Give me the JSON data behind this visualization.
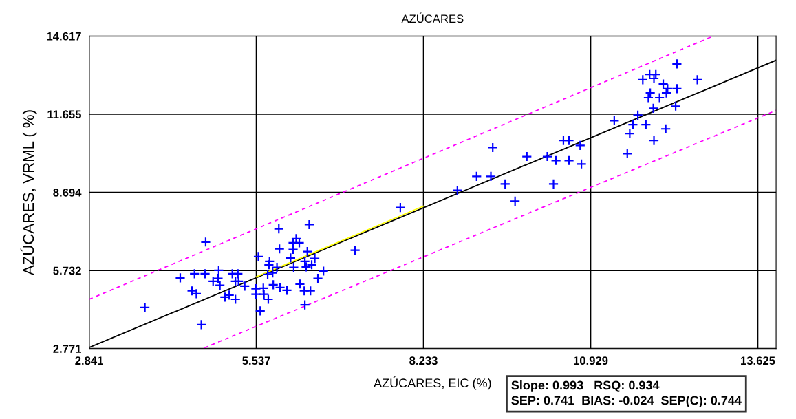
{
  "chart_data": {
    "type": "scatter",
    "title": "AZÚCARES",
    "xlabel": "AZÚCARES, EIC (%)",
    "ylabel": "AZÚCARES, VRML ( %)",
    "xlim": [
      2.841,
      13.92
    ],
    "ylim": [
      2.771,
      14.617
    ],
    "xticks": [
      2.841,
      5.537,
      8.233,
      10.929,
      13.625
    ],
    "yticks": [
      2.771,
      5.732,
      8.694,
      11.655,
      14.617
    ],
    "grid": true,
    "legend": false,
    "annotations": [
      "Slope: 0.993   RSQ: 0.934",
      "SEP: 0.741  BIAS: -0.024  SEP(C): 0.744"
    ],
    "series": [
      {
        "color": "#0000ff",
        "marker": "cross",
        "x": [
          3.74,
          4.65,
          4.72,
          4.31,
          4.54,
          4.71,
          4.93,
          4.92,
          4.84,
          4.95,
          4.5,
          4.57,
          5.03,
          5.1,
          5.2,
          5.15,
          5.24,
          5.2,
          5.25,
          5.35,
          5.53,
          5.53,
          5.65,
          5.66,
          5.73,
          5.6,
          5.57,
          5.75,
          5.74,
          5.72,
          5.8,
          5.87,
          5.9,
          6.39,
          5.91,
          6.18,
          6.13,
          6.23,
          6.13,
          6.09,
          6.36,
          6.32,
          6.34,
          6.43,
          6.48,
          6.14,
          6.62,
          6.53,
          5.81,
          5.92,
          6.03,
          6.24,
          6.31,
          6.41,
          6.32,
          7.13,
          7.86,
          8.78,
          9.09,
          9.32,
          9.35,
          9.55,
          9.71,
          9.9,
          10.23,
          10.37,
          10.33,
          10.58,
          10.78,
          10.76,
          10.49,
          10.58,
          12.32,
          12.65,
          11.77,
          11.88,
          11.98,
          11.95,
          12.1,
          12.17,
          12.32,
          12.15,
          11.89,
          11.86,
          12.04,
          12.3,
          11.94,
          11.69,
          11.31,
          11.61,
          11.82,
          12.14,
          11.56,
          11.95,
          11.52
        ],
        "values": [
          4.33,
          3.68,
          6.81,
          5.45,
          5.61,
          5.61,
          5.74,
          5.43,
          5.32,
          5.17,
          4.96,
          4.85,
          4.72,
          4.8,
          4.64,
          5.61,
          5.61,
          5.32,
          5.32,
          5.14,
          5.04,
          4.83,
          5.06,
          4.83,
          4.64,
          4.2,
          6.26,
          6.08,
          5.95,
          5.58,
          5.64,
          5.85,
          7.31,
          7.47,
          6.55,
          6.94,
          6.78,
          6.78,
          6.53,
          6.21,
          6.45,
          6.08,
          5.87,
          5.95,
          6.19,
          5.85,
          5.71,
          5.43,
          5.19,
          5.09,
          4.98,
          5.22,
          4.96,
          4.96,
          4.43,
          6.5,
          8.12,
          8.77,
          9.3,
          9.3,
          10.39,
          9.01,
          8.36,
          10.05,
          10.05,
          9.9,
          9.01,
          9.9,
          9.77,
          10.47,
          10.66,
          10.66,
          13.56,
          12.96,
          12.96,
          13.16,
          13.16,
          13.01,
          12.8,
          12.62,
          12.62,
          12.46,
          12.46,
          12.28,
          12.28,
          11.96,
          11.88,
          11.62,
          11.41,
          11.26,
          11.26,
          11.1,
          10.92,
          10.66,
          10.16
        ]
      },
      {
        "type": "line",
        "color": "#000000",
        "line_style": "solid",
        "x": [
          2.841,
          13.92
        ],
        "values": [
          2.81,
          13.7
        ]
      },
      {
        "type": "line",
        "color": "#ffff00",
        "line_style": "solid",
        "x": [
          5.537,
          8.233
        ],
        "values": [
          5.49,
          8.17
        ]
      },
      {
        "type": "line",
        "color": "#ff00ff",
        "line_style": "dashed",
        "x": [
          2.841,
          12.89
        ],
        "values": [
          4.64,
          14.6
        ]
      },
      {
        "type": "line",
        "color": "#ff00ff",
        "line_style": "dashed",
        "x": [
          4.7,
          13.92
        ],
        "values": [
          2.8,
          11.8
        ]
      }
    ]
  }
}
